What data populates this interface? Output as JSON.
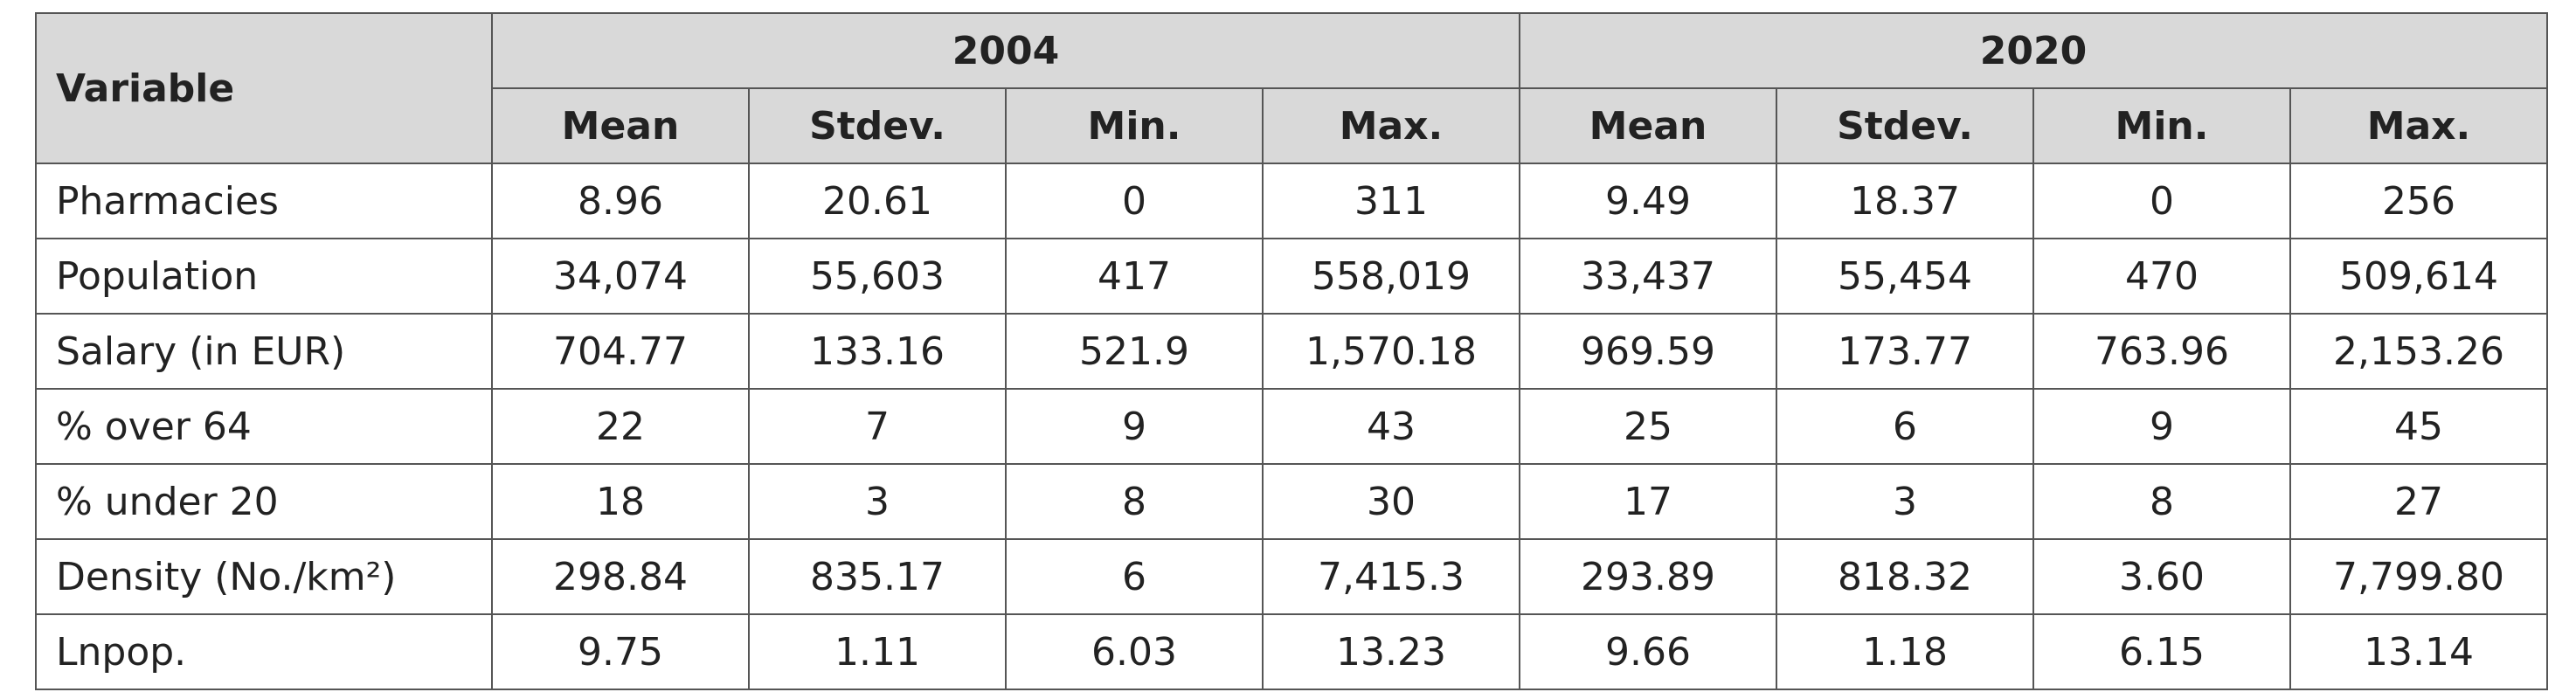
{
  "table": {
    "variable_header": "Variable",
    "groups": [
      {
        "year": "2004",
        "columns": [
          "Mean",
          "Stdev.",
          "Min.",
          "Max."
        ]
      },
      {
        "year": "2020",
        "columns": [
          "Mean",
          "Stdev.",
          "Min.",
          "Max."
        ]
      }
    ],
    "rows": [
      {
        "label": "Pharmacies",
        "values": [
          "8.96",
          "20.61",
          "0",
          "311",
          "9.49",
          "18.37",
          "0",
          "256"
        ]
      },
      {
        "label": "Population",
        "values": [
          "34,074",
          "55,603",
          "417",
          "558,019",
          "33,437",
          "55,454",
          "470",
          "509,614"
        ]
      },
      {
        "label": "Salary (in EUR)",
        "values": [
          "704.77",
          "133.16",
          "521.9",
          "1,570.18",
          "969.59",
          "173.77",
          "763.96",
          "2,153.26"
        ]
      },
      {
        "label": "% over 64",
        "values": [
          "22",
          "7",
          "9",
          "43",
          "25",
          "6",
          "9",
          "45"
        ]
      },
      {
        "label": "% under 20",
        "values": [
          "18",
          "3",
          "8",
          "30",
          "17",
          "3",
          "8",
          "27"
        ]
      },
      {
        "label": "Density (No./km²)",
        "values": [
          "298.84",
          "835.17",
          "6",
          "7,415.3",
          "293.89",
          "818.32",
          "3.60",
          "7,799.80"
        ]
      },
      {
        "label": "Lnpop.",
        "values": [
          "9.75",
          "1.11",
          "6.03",
          "13.23",
          "9.66",
          "1.18",
          "6.15",
          "13.14"
        ]
      }
    ]
  }
}
